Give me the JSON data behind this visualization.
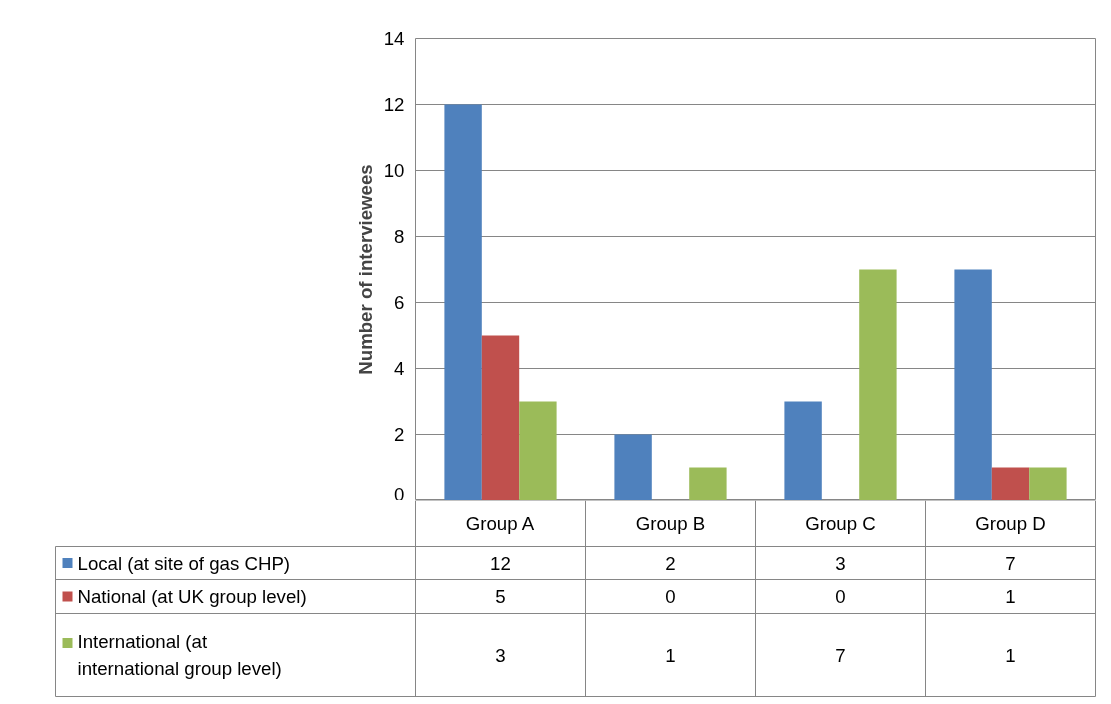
{
  "chart_data": {
    "type": "bar",
    "ylabel": "Number of interviewees",
    "categories": [
      "Group A",
      "Group B",
      "Group C",
      "Group D"
    ],
    "series": [
      {
        "name": "Local (at site of gas CHP)",
        "color": "#4f81bd",
        "values": [
          12,
          2,
          3,
          7
        ]
      },
      {
        "name": "National (at UK group level)",
        "color": "#c0504d",
        "values": [
          5,
          0,
          0,
          1
        ]
      },
      {
        "name": "International (at international group level)",
        "color": "#9bbb59",
        "values": [
          3,
          1,
          7,
          1
        ]
      }
    ],
    "ylim": [
      0,
      14
    ],
    "yticks": [
      0,
      2,
      4,
      6,
      8,
      10,
      12,
      14
    ],
    "grid": "y",
    "data_labels": true,
    "legend": "bottom"
  }
}
